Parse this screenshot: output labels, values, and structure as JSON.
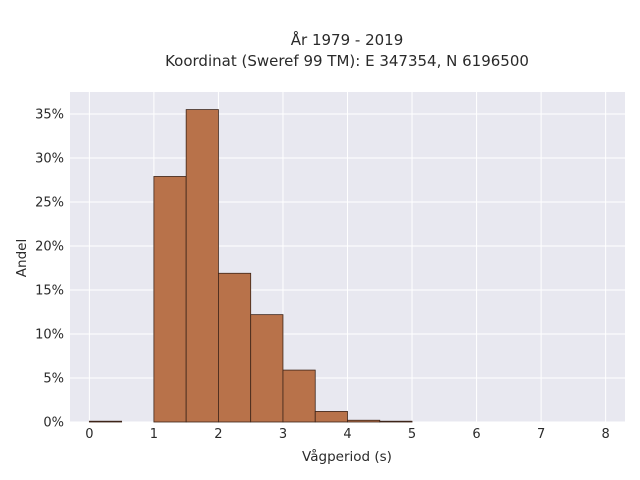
{
  "chart_data": {
    "type": "bar",
    "title_lines": [
      "År 1979 - 2019",
      "Koordinat (Sweref 99 TM): E 347354, N 6196500"
    ],
    "xlabel": "Vågperiod (s)",
    "ylabel": "Andel",
    "xlim": [
      -0.3,
      8.3
    ],
    "ylim": [
      0,
      0.375
    ],
    "x_ticks": [
      0,
      1,
      2,
      3,
      4,
      5,
      6,
      7,
      8
    ],
    "y_ticks": [
      0,
      0.05,
      0.1,
      0.15,
      0.2,
      0.25,
      0.3,
      0.35
    ],
    "y_tick_labels": [
      "0%",
      "5%",
      "10%",
      "15%",
      "20%",
      "25%",
      "30%",
      "35%"
    ],
    "bin_width": 0.5,
    "bins": [
      {
        "x0": 0.0,
        "x1": 0.5,
        "value": 0.0005
      },
      {
        "x0": 0.5,
        "x1": 1.0,
        "value": 0.0
      },
      {
        "x0": 1.0,
        "x1": 1.5,
        "value": 0.279
      },
      {
        "x0": 1.5,
        "x1": 2.0,
        "value": 0.355
      },
      {
        "x0": 2.0,
        "x1": 2.5,
        "value": 0.169
      },
      {
        "x0": 2.5,
        "x1": 3.0,
        "value": 0.122
      },
      {
        "x0": 3.0,
        "x1": 3.5,
        "value": 0.059
      },
      {
        "x0": 3.5,
        "x1": 4.0,
        "value": 0.012
      },
      {
        "x0": 4.0,
        "x1": 4.5,
        "value": 0.002
      },
      {
        "x0": 4.5,
        "x1": 5.0,
        "value": 0.0005
      }
    ],
    "grid": true,
    "legend": "none"
  },
  "colors": {
    "plot_background": "#e8e8f0",
    "grid": "#ffffff",
    "bar_fill": "#b8724a",
    "bar_stroke": "#3d2418",
    "text": "#2a2a2a"
  }
}
